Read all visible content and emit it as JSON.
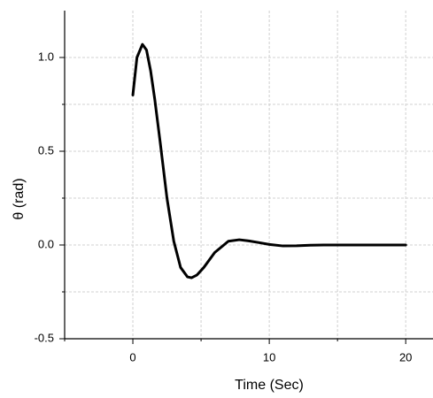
{
  "chart_data": {
    "type": "line",
    "x_label": "Time (Sec)",
    "y_label": "θ (rad)",
    "series": [
      {
        "color": "#000000",
        "x": [
          0,
          0.3,
          0.7,
          1.0,
          1.3,
          1.6,
          2.0,
          2.5,
          3.0,
          3.5,
          4.0,
          4.3,
          4.7,
          5.2,
          6.0,
          7.0,
          7.8,
          8.5,
          9.3,
          10.0,
          11.0,
          12.0,
          13.0,
          14.0,
          16.0,
          18.0,
          20.0
        ],
        "values": [
          0.8,
          1.0,
          1.07,
          1.04,
          0.93,
          0.78,
          0.55,
          0.25,
          0.02,
          -0.12,
          -0.17,
          -0.175,
          -0.16,
          -0.12,
          -0.04,
          0.02,
          0.028,
          0.022,
          0.012,
          0.003,
          -0.005,
          -0.004,
          -0.001,
          0,
          0,
          0,
          0
        ]
      }
    ],
    "xlim": [
      -5,
      22
    ],
    "xticks": [
      0,
      10,
      20
    ],
    "x_minor_ticks": [
      -5,
      5,
      15
    ],
    "ylim": [
      -0.5,
      1.25
    ],
    "yticks": [
      -0.5,
      {
        "value": 0,
        "label": "0.0"
      },
      0.5,
      {
        "value": 1,
        "label": "1.0"
      }
    ],
    "y_minor_ticks": [
      -0.25,
      0.25,
      0.75
    ],
    "grid": true
  }
}
